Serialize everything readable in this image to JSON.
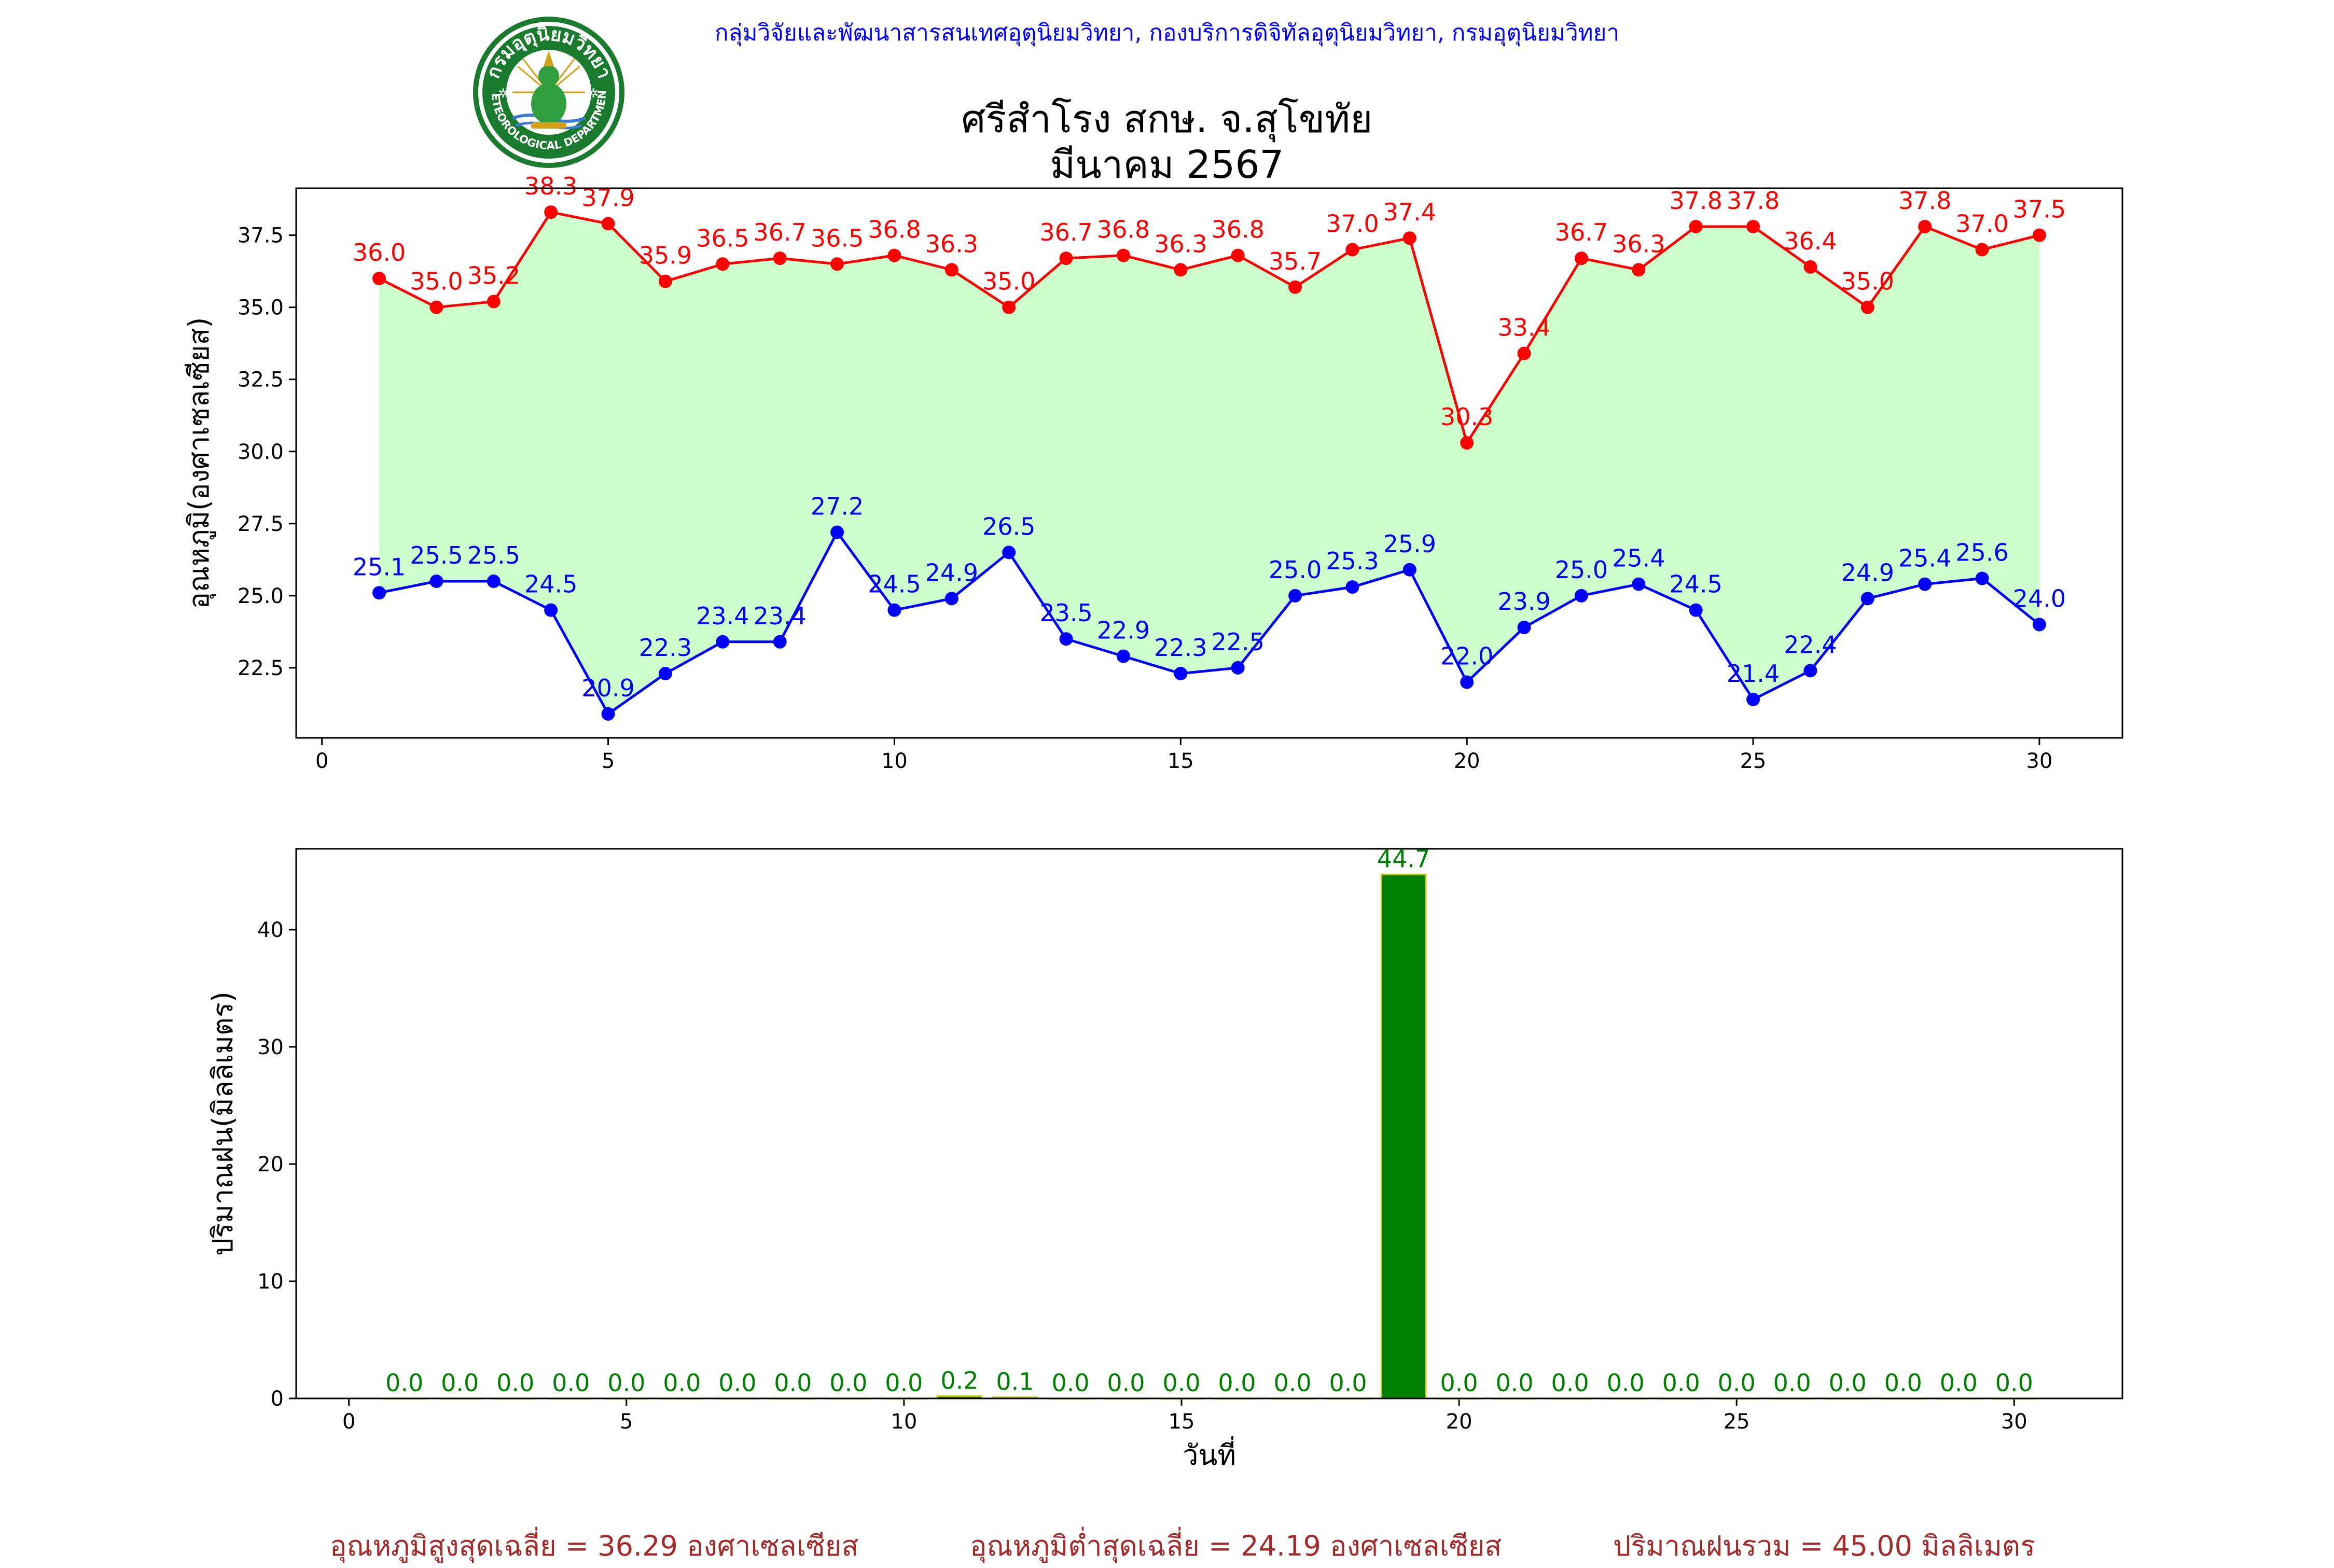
{
  "header": {
    "organization": "กลุ่มวิจัยและพัฒนาสารสนเทศอุตุนิยมวิทยา, กองบริการดิจิทัลอุตุนิยมวิทยา, กรมอุตุนิยมวิทยา",
    "station": "ศรีสำโรง สกษ. จ.สุโขทัย",
    "period": "มีนาคม 2567",
    "logo_text_top": "กรมอุตุนิยมวิทยา",
    "logo_text_bottom": "METEOROLOGICAL DEPARTMENT"
  },
  "colors": {
    "max_line": "#ff0000",
    "min_line": "#0000ff",
    "range_fill": "#ccffcc",
    "rain_bar": "#008000",
    "rain_bar_edge": "#cccc00",
    "rain_label": "#008000",
    "org_text": "#0000ff",
    "summary_text": "#a52a2a"
  },
  "chart_data": [
    {
      "type": "line",
      "ylabel": "อุณหภูมิ(องศาเซลเซียส)",
      "xlabel": "",
      "x": [
        1,
        2,
        3,
        4,
        5,
        6,
        7,
        8,
        9,
        10,
        11,
        12,
        13,
        14,
        15,
        16,
        17,
        18,
        19,
        20,
        21,
        22,
        23,
        24,
        25,
        26,
        27,
        28,
        29,
        30
      ],
      "xlim": [
        -0.45,
        31.45
      ],
      "ylim": [
        20.07,
        39.13
      ],
      "xticks": [
        0,
        5,
        10,
        15,
        20,
        25,
        30
      ],
      "yticks": [
        22.5,
        25.0,
        27.5,
        30.0,
        32.5,
        35.0,
        37.5
      ],
      "ytick_labels": [
        "22.5",
        "25.0",
        "27.5",
        "30.0",
        "32.5",
        "35.0",
        "37.5"
      ],
      "grid": false,
      "fill_between": true,
      "series": [
        {
          "key": "max",
          "values": [
            36.0,
            35.0,
            35.2,
            38.3,
            37.9,
            35.9,
            36.5,
            36.7,
            36.5,
            36.8,
            36.3,
            35.0,
            36.7,
            36.8,
            36.3,
            36.8,
            35.7,
            37.0,
            37.4,
            30.3,
            33.4,
            36.7,
            36.3,
            37.8,
            37.8,
            36.4,
            35.0,
            37.8,
            37.0,
            37.5
          ]
        },
        {
          "key": "min",
          "values": [
            25.1,
            25.5,
            25.5,
            24.5,
            20.9,
            22.3,
            23.4,
            23.4,
            27.2,
            24.5,
            24.9,
            26.5,
            23.5,
            22.9,
            22.3,
            22.5,
            25.0,
            25.3,
            25.9,
            22.0,
            23.9,
            25.0,
            25.4,
            24.5,
            21.4,
            22.4,
            24.9,
            25.4,
            25.6,
            24.0
          ]
        }
      ]
    },
    {
      "type": "bar",
      "ylabel": "ปริมาณฝน(มิลลิเมตร)",
      "xlabel": "วันที่",
      "x": [
        1,
        2,
        3,
        4,
        5,
        6,
        7,
        8,
        9,
        10,
        11,
        12,
        13,
        14,
        15,
        16,
        17,
        18,
        19,
        20,
        21,
        22,
        23,
        24,
        25,
        26,
        27,
        28,
        29,
        30
      ],
      "values": [
        0.0,
        0.0,
        0.0,
        0.0,
        0.0,
        0.0,
        0.0,
        0.0,
        0.0,
        0.0,
        0.2,
        0.1,
        0.0,
        0.0,
        0.0,
        0.0,
        0.0,
        0.0,
        44.7,
        0.0,
        0.0,
        0.0,
        0.0,
        0.0,
        0.0,
        0.0,
        0.0,
        0.0,
        0.0,
        0.0
      ],
      "xlim": [
        -0.95,
        31.95
      ],
      "ylim": [
        0,
        46.9
      ],
      "xticks": [
        0,
        5,
        10,
        15,
        20,
        25,
        30
      ],
      "yticks": [
        0,
        10,
        20,
        30,
        40
      ],
      "grid": false
    }
  ],
  "summary": {
    "avg_max": "อุณหภูมิสูงสุดเฉลี่ย = 36.29 องศาเซลเซียส",
    "avg_min": "อุณหภูมิต่ำสุดเฉลี่ย = 24.19 องศาเซลเซียส",
    "total_rain": "ปริมาณฝนรวม = 45.00 มิลลิเมตร"
  }
}
